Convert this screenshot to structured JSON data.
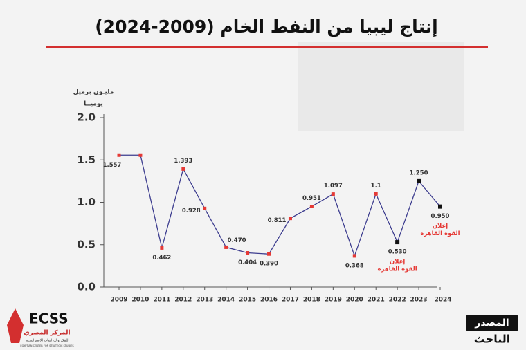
{
  "chart_data": {
    "type": "line",
    "title": "إنتاج ليبيا من النفط الخام  (2009-2024)",
    "y_label_lines": [
      "مليـون برميل",
      "يوميــا"
    ],
    "categories": [
      "2009",
      "2010",
      "2011",
      "2012",
      "2013",
      "2014",
      "2015",
      "2016",
      "2017",
      "2018",
      "2019",
      "2020",
      "2021",
      "2022",
      "2023",
      "2024"
    ],
    "values": [
      1.557,
      1.557,
      0.462,
      1.393,
      0.928,
      0.47,
      0.404,
      0.39,
      0.811,
      0.951,
      1.097,
      0.368,
      1.1,
      0.53,
      1.25,
      0.95
    ],
    "value_labels": [
      "1.557",
      null,
      "0.462",
      "1.393",
      "0.928",
      "0.470",
      "0.404",
      "0.390",
      "0.811",
      "0.951",
      "1.097",
      "0.368",
      "1.1",
      "0.530",
      "1.250",
      "0.950"
    ],
    "line_color": "#3d3d8f",
    "point_colors": [
      "#e53935",
      "#e53935",
      "#e53935",
      "#e53935",
      "#e53935",
      "#e53935",
      "#e53935",
      "#e53935",
      "#e53935",
      "#e53935",
      "#e53935",
      "#e53935",
      "#e53935",
      "#111111",
      "#111111",
      "#111111"
    ],
    "ylim": [
      0,
      2.0
    ],
    "yticks": [
      {
        "value": 0,
        "label": "0.0"
      },
      0.5,
      {
        "value": 1,
        "label": "1.0"
      },
      1.5,
      {
        "value": 2,
        "label": "2.0"
      }
    ],
    "annotations": [
      {
        "category": "2022",
        "lines": [
          "إعلان",
          "القوة القاهرة"
        ]
      },
      {
        "category": "2024",
        "lines": [
          "إعلان",
          "القوة القاهرة"
        ]
      }
    ]
  },
  "source": {
    "label": "المصدر",
    "value": "الباحث"
  },
  "logo": {
    "abbr": "ECSS",
    "name": "المركز المصري",
    "subtitle": "للفكر والدراسات الاستراتيجية",
    "english": "EGYPTIAN CENTER FOR STRATEGIC STUDIES"
  }
}
